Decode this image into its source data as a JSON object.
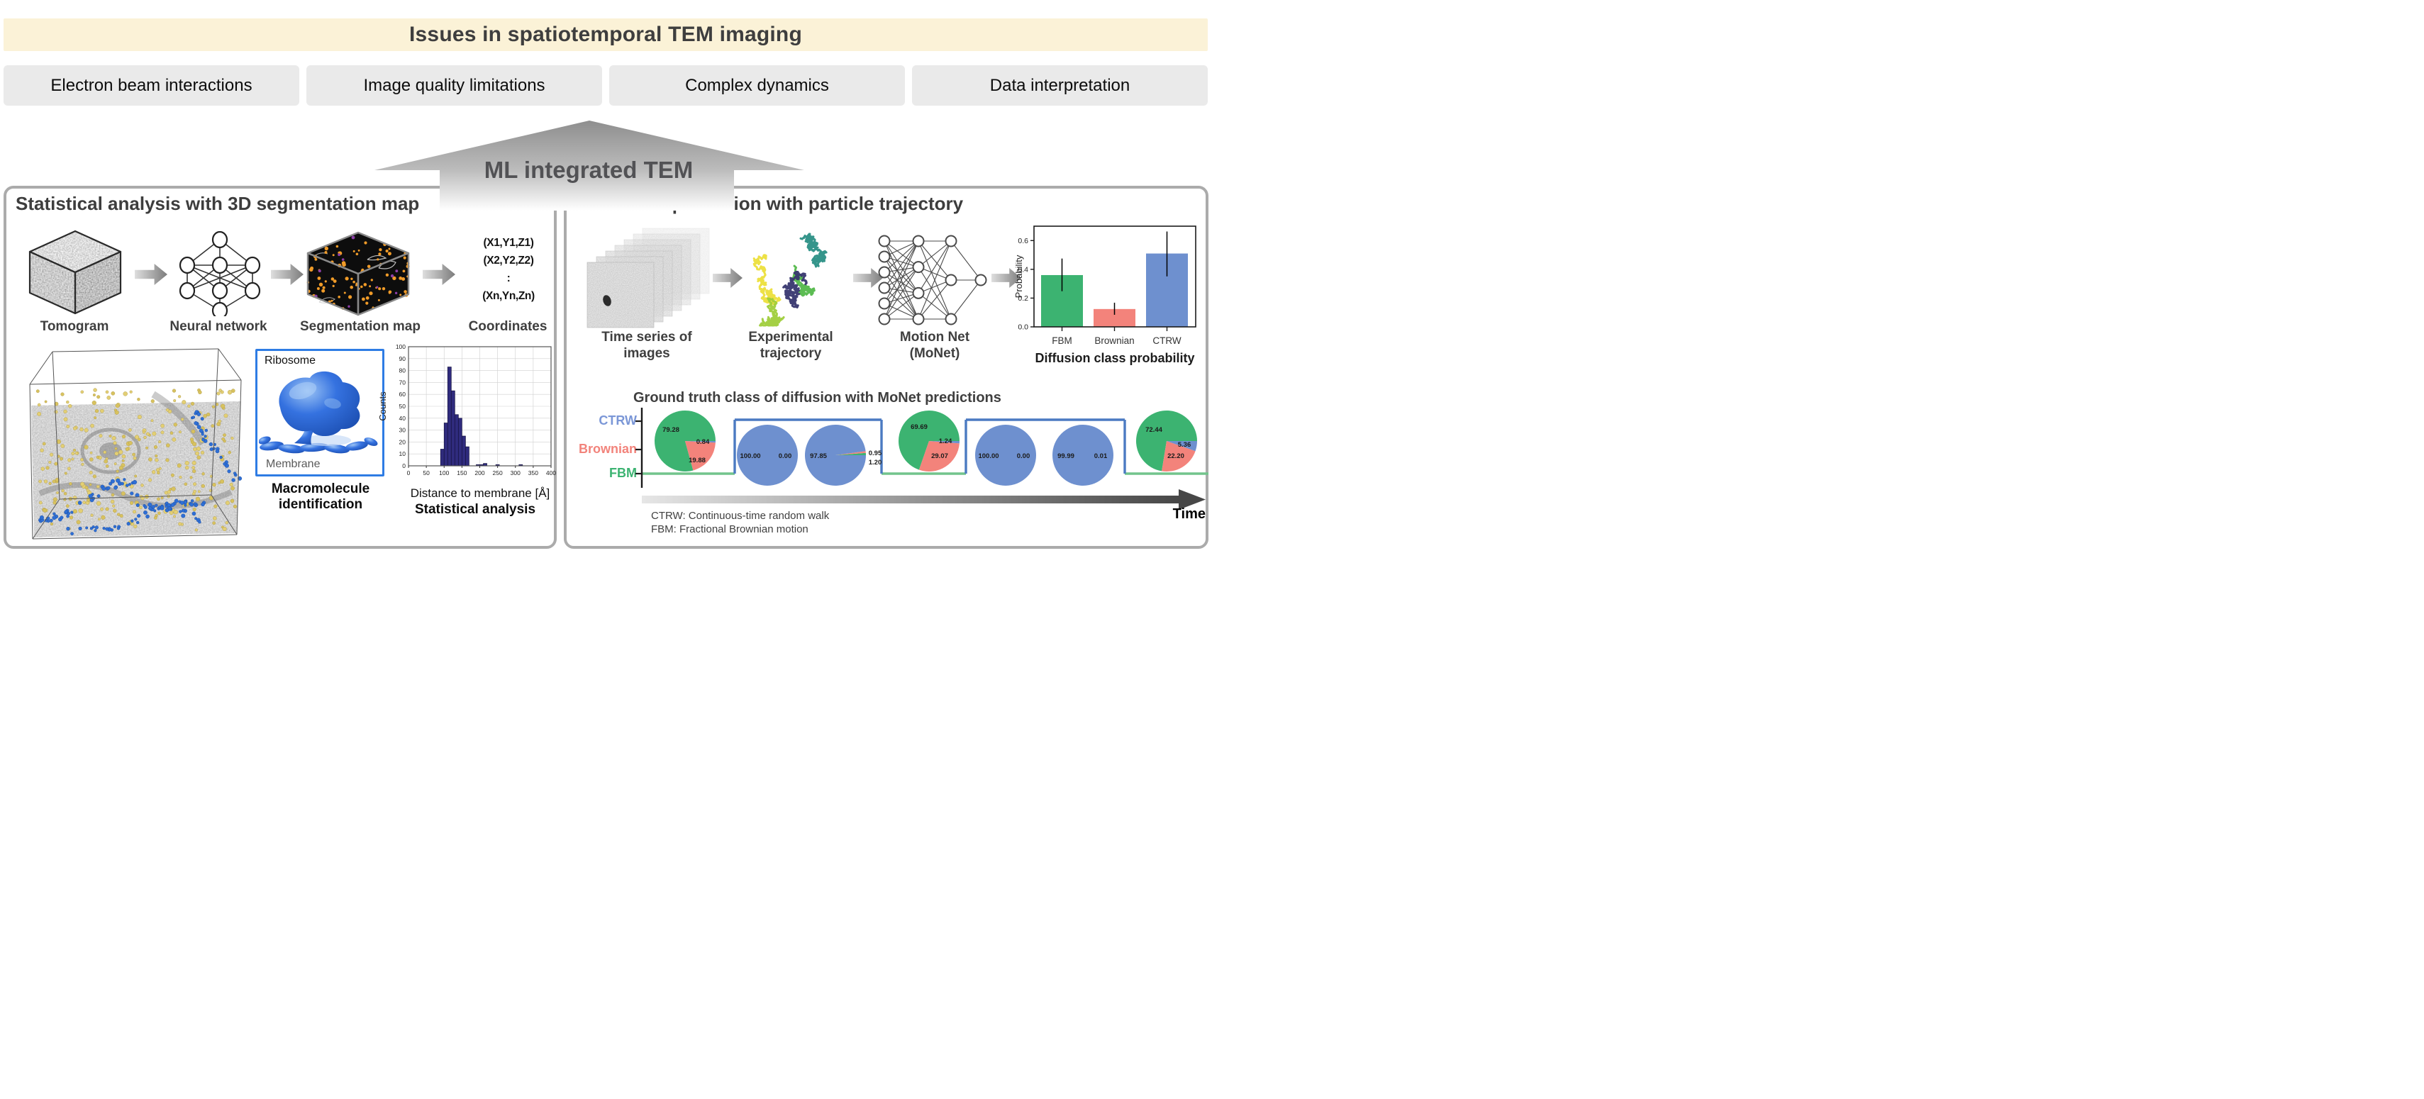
{
  "banner": {
    "title": "Issues in spatiotemporal TEM imaging",
    "bg": "#FBF2D7",
    "text_color": "#3E3E3E"
  },
  "issues": [
    {
      "label": "Electron beam interactions"
    },
    {
      "label": "Image quality limitations"
    },
    {
      "label": "Complex dynamics"
    },
    {
      "label": "Data interpretation"
    }
  ],
  "ml_arrow": {
    "label": "ML integrated TEM"
  },
  "left_panel": {
    "title": "Statistical analysis with 3D segmentation map",
    "pipeline_labels": [
      "Tomogram",
      "Neural network",
      "Segmentation map",
      "Coordinates"
    ],
    "coordinates_lines": [
      "(X1,Y1,Z1)",
      "(X2,Y2,Z2)",
      ":",
      "(Xn,Yn,Zn)"
    ],
    "identification": {
      "top_label": "Ribosome",
      "bottom_label": "Membrane",
      "caption_line1": "Macromolecule",
      "caption_line2": "identification"
    },
    "histogram_caption": "Statistical analysis"
  },
  "right_panel": {
    "title": "Movement prediction with particle trajectory",
    "pipeline_labels": [
      [
        "Time series of",
        "images"
      ],
      [
        "Experimental",
        "trajectory"
      ],
      [
        "Motion Net",
        "(MoNet)"
      ]
    ],
    "bar_caption": "Diffusion class probability",
    "timeline_title": "Ground truth class of diffusion with MoNet predictions",
    "class_labels": [
      {
        "label": "CTRW",
        "color": "#7B97D7"
      },
      {
        "label": "Brownian",
        "color": "#F2837B"
      },
      {
        "label": "FBM",
        "color": "#3CB371"
      }
    ],
    "footnotes": [
      "CTRW: Continuous-time random walk",
      "FBM: Fractional Brownian motion"
    ],
    "time_label": "Time"
  },
  "colors": {
    "FBM": "#3CB371",
    "Brownian": "#F3837B",
    "CTRW": "#6E90CF",
    "hist_bar": "#2F2B7D",
    "step_green": "#72C48C",
    "step_blue": "#4B7AC2"
  },
  "chart_data": [
    {
      "id": "distance_histogram",
      "type": "bar",
      "title": "Statistical analysis",
      "xlabel": "Distance to membrane [Å]",
      "ylabel": "Counts",
      "xlim": [
        0,
        400
      ],
      "ylim": [
        0,
        100
      ],
      "x_tick_step": 50,
      "y_tick_step": 10,
      "grid": true,
      "bin_width": 10,
      "bins": [
        {
          "x": 90,
          "count": 14
        },
        {
          "x": 100,
          "count": 36
        },
        {
          "x": 110,
          "count": 83
        },
        {
          "x": 120,
          "count": 63
        },
        {
          "x": 130,
          "count": 43
        },
        {
          "x": 140,
          "count": 40
        },
        {
          "x": 150,
          "count": 25
        },
        {
          "x": 160,
          "count": 16
        },
        {
          "x": 190,
          "count": 1
        },
        {
          "x": 200,
          "count": 1
        },
        {
          "x": 210,
          "count": 2
        },
        {
          "x": 245,
          "count": 1
        },
        {
          "x": 310,
          "count": 1
        }
      ]
    },
    {
      "id": "diffusion_class_probability",
      "type": "bar",
      "title": "Diffusion class probability",
      "ylabel": "Probability",
      "categories": [
        "FBM",
        "Brownian",
        "CTRW"
      ],
      "values": [
        0.36,
        0.124,
        0.51
      ],
      "errors_low": [
        0.248,
        0.084,
        0.351
      ],
      "errors_high": [
        0.475,
        0.168,
        0.663
      ],
      "bar_colors": [
        "#3CB371",
        "#F3837B",
        "#6E90CF"
      ],
      "ylim": [
        0,
        0.7
      ],
      "y_ticks": [
        0.0,
        0.2,
        0.4,
        0.6
      ]
    },
    {
      "id": "monet_predictions_timeline",
      "type": "pie",
      "title": "Ground truth class of diffusion with MoNet predictions",
      "series": [
        {
          "ground_truth": "FBM",
          "slices": [
            {
              "class": "FBM",
              "value": 79.28,
              "label": "79.28",
              "label_pos": [
                -20,
                -16
              ]
            },
            {
              "class": "Brownian",
              "value": 19.88,
              "label": "19.88",
              "label_pos": [
                17,
                27
              ]
            },
            {
              "class": "CTRW",
              "value": 0.84,
              "label": "0.84",
              "label_pos": [
                25,
                1
              ]
            }
          ]
        },
        {
          "ground_truth": "CTRW",
          "slices": [
            {
              "class": "CTRW",
              "value": 100.0,
              "label": "100.00",
              "label_pos": [
                -24,
                1
              ]
            },
            {
              "class": "Brownian",
              "value": 0.0,
              "label": "0.00",
              "label_pos": [
                25,
                1
              ]
            }
          ]
        },
        {
          "ground_truth": "CTRW",
          "slices": [
            {
              "class": "FBM",
              "value": 1.2,
              "label": "1.20",
              "label_pos": [
                56,
                10
              ]
            },
            {
              "class": "Brownian",
              "value": 0.95,
              "label": "0.95",
              "label_pos": [
                56,
                -3
              ]
            },
            {
              "class": "CTRW",
              "value": 97.85,
              "label": "97.85",
              "label_pos": [
                -24,
                1
              ]
            }
          ]
        },
        {
          "ground_truth": "FBM",
          "slices": [
            {
              "class": "FBM",
              "value": 69.69,
              "label": "69.69",
              "label_pos": [
                -14,
                -20
              ]
            },
            {
              "class": "Brownian",
              "value": 29.07,
              "label": "29.07",
              "label_pos": [
                15,
                21
              ]
            },
            {
              "class": "CTRW",
              "value": 1.24,
              "label": "1.24",
              "label_pos": [
                23,
                0
              ]
            }
          ]
        },
        {
          "ground_truth": "CTRW",
          "slices": [
            {
              "class": "CTRW",
              "value": 100.0,
              "label": "100.00",
              "label_pos": [
                -24,
                1
              ]
            },
            {
              "class": "Brownian",
              "value": 0.0,
              "label": "0.00",
              "label_pos": [
                25,
                1
              ]
            }
          ]
        },
        {
          "ground_truth": "CTRW",
          "slices": [
            {
              "class": "CTRW",
              "value": 99.99,
              "label": "99.99",
              "label_pos": [
                -24,
                1
              ]
            },
            {
              "class": "Brownian",
              "value": 0.01,
              "label": "0.01",
              "label_pos": [
                25,
                1
              ]
            }
          ]
        },
        {
          "ground_truth": "FBM",
          "slices": [
            {
              "class": "FBM",
              "value": 72.44,
              "label": "72.44",
              "label_pos": [
                -18,
                -16
              ]
            },
            {
              "class": "Brownian",
              "value": 22.2,
              "label": "22.20",
              "label_pos": [
                13,
                21
              ]
            },
            {
              "class": "CTRW",
              "value": 5.36,
              "label": "5.36",
              "label_pos": [
                25,
                5
              ]
            }
          ]
        }
      ]
    }
  ]
}
